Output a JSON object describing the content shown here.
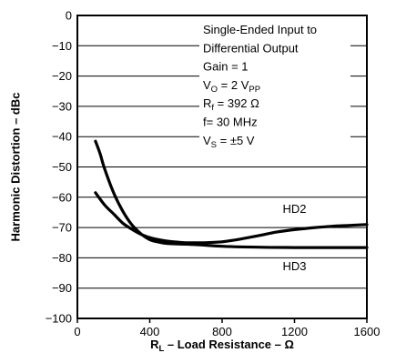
{
  "chart_data": {
    "type": "line",
    "xlabel": {
      "main": "R",
      "sub": "L",
      "rest": " – Load Resistance – Ω"
    },
    "ylabel": "Harmonic Distortion – dBc",
    "xlim": [
      0,
      1600
    ],
    "ylim": [
      -100,
      0
    ],
    "xticks": [
      0,
      400,
      800,
      1200,
      1600
    ],
    "yticks": [
      0,
      -10,
      -20,
      -30,
      -40,
      -50,
      -60,
      -70,
      -80,
      -90,
      -100
    ],
    "grid": true,
    "conditions": [
      {
        "text": "Single-Ended Input to"
      },
      {
        "text": "Differential Output"
      },
      {
        "text": "Gain = 1"
      },
      {
        "text": "V",
        "sub": "O",
        "rest": " = 2 V",
        "sub2": "PP"
      },
      {
        "text": "R",
        "sub": "f",
        "rest": " = 392 Ω"
      },
      {
        "text": "f= 30 MHz"
      },
      {
        "text": "V",
        "sub": "S",
        "rest": " = ±5 V"
      }
    ],
    "series": [
      {
        "name": "HD2",
        "x": [
          100,
          150,
          200,
          250,
          300,
          350,
          400,
          450,
          500,
          550,
          600,
          700,
          800,
          900,
          1000,
          1100,
          1200,
          1300,
          1400,
          1500,
          1600
        ],
        "values": [
          -58.5,
          -62.5,
          -65.5,
          -68.5,
          -70.5,
          -72.2,
          -73.3,
          -74.0,
          -74.5,
          -74.8,
          -75.0,
          -75.0,
          -74.7,
          -73.8,
          -72.7,
          -71.5,
          -70.7,
          -70.1,
          -69.6,
          -69.3,
          -69.0
        ]
      },
      {
        "name": "HD3",
        "x": [
          100,
          125,
          150,
          200,
          250,
          300,
          350,
          400,
          450,
          500,
          600,
          700,
          800,
          1000,
          1200,
          1400,
          1600
        ],
        "values": [
          -41.5,
          -45.5,
          -50.5,
          -58.5,
          -64.5,
          -69.0,
          -72.0,
          -74.0,
          -74.8,
          -75.3,
          -75.5,
          -75.8,
          -76.2,
          -76.5,
          -76.6,
          -76.6,
          -76.6
        ]
      }
    ]
  }
}
